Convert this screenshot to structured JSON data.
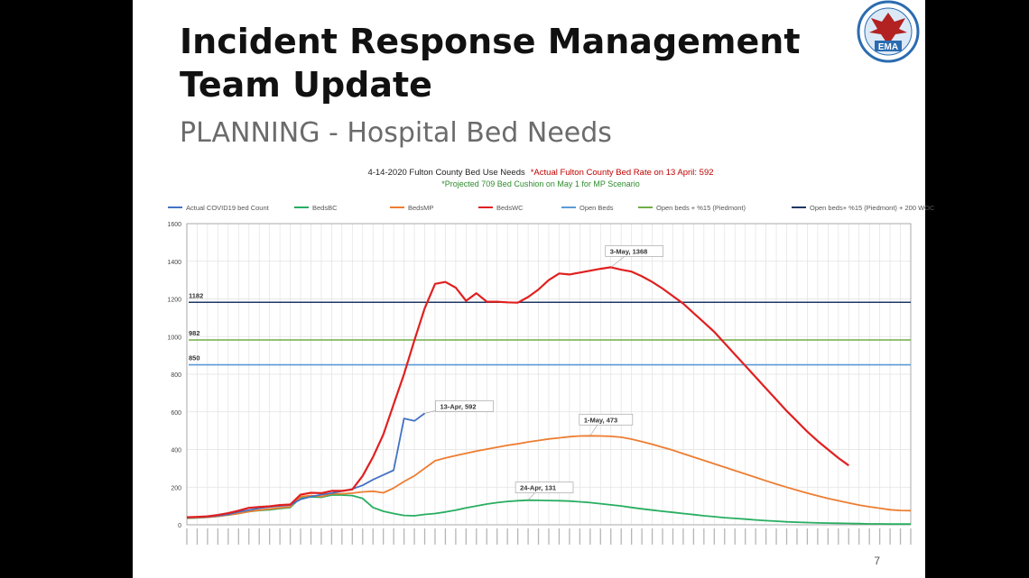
{
  "slide": {
    "title": "Incident Response Management Team Update",
    "subtitle": "PLANNING - Hospital Bed Needs",
    "page_number": "7",
    "logo_text": "EMA",
    "colors": {
      "background": "#ffffff",
      "frame": "#000000",
      "title": "#111111",
      "subtitle": "#6b6b6b"
    }
  },
  "chart_data": {
    "type": "line",
    "title": "4-14-2020 Fulton County Bed Use Needs",
    "title_note": "*Actual Fulton County Bed Rate on 13 April: 592",
    "subtitle_note": "*Projected 709 Bed Cushion on May 1 for MP Scenario",
    "legend_position": "top",
    "ylim": [
      0,
      1600
    ],
    "y_ticks": [
      0,
      200,
      400,
      600,
      800,
      1000,
      1200,
      1400,
      1600
    ],
    "grid": true,
    "x_count": 71,
    "x_labels_note": "daily date tick labels along the x-axis (rotated, illegible)",
    "series": [
      {
        "name": "Actual COVID19 bed Count",
        "color": "#4472c4",
        "values": [
          38,
          40,
          42,
          48,
          55,
          68,
          78,
          88,
          95,
          100,
          105,
          135,
          150,
          160,
          168,
          178,
          190,
          210,
          240,
          265,
          290,
          565,
          552,
          592
        ]
      },
      {
        "name": "BedsBC",
        "color": "#27ae60",
        "values": [
          35,
          37,
          40,
          45,
          52,
          60,
          70,
          76,
          80,
          86,
          92,
          145,
          148,
          146,
          158,
          158,
          155,
          140,
          92,
          72,
          60,
          50,
          48,
          55,
          60,
          68,
          78,
          90,
          100,
          110,
          118,
          124,
          128,
          131,
          130,
          129,
          128,
          126,
          122,
          118,
          112,
          106,
          100,
          92,
          85,
          78,
          72,
          66,
          60,
          54,
          48,
          43,
          38,
          34,
          30,
          26,
          22,
          19,
          16,
          14,
          12,
          10,
          9,
          8,
          7,
          6,
          5,
          5,
          4,
          4,
          4
        ]
      },
      {
        "name": "BedsMP",
        "color": "#ed7d31",
        "values": [
          36,
          38,
          40,
          45,
          52,
          60,
          70,
          78,
          84,
          90,
          96,
          150,
          155,
          150,
          165,
          165,
          168,
          175,
          178,
          170,
          195,
          230,
          260,
          300,
          340,
          355,
          368,
          380,
          392,
          402,
          412,
          422,
          430,
          440,
          448,
          456,
          462,
          468,
          472,
          473,
          472,
          470,
          465,
          455,
          442,
          428,
          412,
          396,
          378,
          360,
          342,
          324,
          306,
          288,
          270,
          252,
          234,
          216,
          200,
          184,
          168,
          154,
          140,
          128,
          116,
          105,
          96,
          88,
          80,
          76,
          75
        ]
      },
      {
        "name": "BedsWC",
        "color": "#e02020",
        "values": [
          40,
          42,
          45,
          52,
          62,
          75,
          90,
          95,
          98,
          105,
          108,
          160,
          170,
          168,
          180,
          180,
          188,
          260,
          360,
          480,
          640,
          800,
          980,
          1150,
          1280,
          1290,
          1260,
          1190,
          1230,
          1185,
          1185,
          1182,
          1180,
          1210,
          1250,
          1300,
          1335,
          1330,
          1340,
          1350,
          1360,
          1368,
          1355,
          1345,
          1320,
          1290,
          1255,
          1215,
          1175,
          1125,
          1075,
          1025,
          965,
          905,
          845,
          785,
          725,
          665,
          605,
          550,
          495,
          445,
          400,
          355,
          315
        ]
      },
      {
        "name": "Open Beds",
        "color": "#5b9bd5",
        "constant": 850,
        "values": [
          850,
          850
        ],
        "label": "850"
      },
      {
        "name": "Open beds + %15 (Piedmont)",
        "color": "#70ad47",
        "constant": 982,
        "values": [
          982,
          982
        ],
        "label": "982"
      },
      {
        "name": "Open beds+ %15 (Piedmont) + 200 WOC",
        "color": "#1f3864",
        "constant": 1182,
        "values": [
          1182,
          1182
        ],
        "label": "1182"
      }
    ],
    "annotations": [
      {
        "text": "13-Apr, 592",
        "series": "Actual COVID19 bed Count",
        "x_index": 23,
        "y": 592
      },
      {
        "text": "3-May, 1368",
        "series": "BedsWC",
        "x_index": 41,
        "y": 1368
      },
      {
        "text": "1-May, 473",
        "series": "BedsMP",
        "x_index": 39,
        "y": 473
      },
      {
        "text": "24-Apr, 131",
        "series": "BedsBC",
        "x_index": 33,
        "y": 131
      }
    ]
  }
}
